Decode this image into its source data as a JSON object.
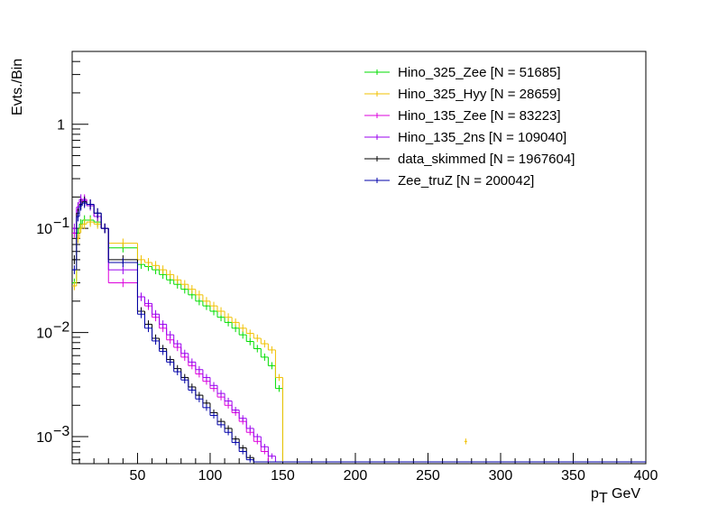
{
  "chart_data": {
    "type": "line",
    "style": "step-histogram",
    "ylabel": "Evts./Bin",
    "xlabel_main": "p",
    "xlabel_sub": "T",
    "xlabel_unit": "GeV",
    "xlim": [
      5,
      400
    ],
    "ylim": [
      0.00055,
      5
    ],
    "yscale": "log",
    "x_ticks": [
      50,
      100,
      150,
      200,
      250,
      300,
      350,
      400
    ],
    "x_tick_labels": [
      "50",
      "100",
      "150",
      "200",
      "250",
      "300",
      "350",
      "400"
    ],
    "y_ticks": [
      0.001,
      0.01,
      0.1,
      1
    ],
    "y_tick_labels": [
      {
        "base": "10",
        "exp": "−3"
      },
      {
        "base": "10",
        "exp": "−2"
      },
      {
        "base": "10",
        "exp": "−1"
      },
      {
        "base": "1",
        "exp": ""
      }
    ],
    "legend_position": "top-right",
    "series": [
      {
        "name": "Hino_325_Zee [N = 51685]",
        "color": "#00dd00",
        "bins": [
          [
            5,
            8,
            0.03
          ],
          [
            8,
            10,
            0.09
          ],
          [
            10,
            12,
            0.11
          ],
          [
            12,
            15,
            0.12
          ],
          [
            15,
            20,
            0.12
          ],
          [
            20,
            25,
            0.115
          ],
          [
            25,
            30,
            0.1
          ],
          [
            30,
            50,
            0.065
          ],
          [
            50,
            55,
            0.045
          ],
          [
            55,
            60,
            0.043
          ],
          [
            60,
            65,
            0.04
          ],
          [
            65,
            70,
            0.036
          ],
          [
            70,
            75,
            0.032
          ],
          [
            75,
            80,
            0.029
          ],
          [
            80,
            85,
            0.026
          ],
          [
            85,
            90,
            0.023
          ],
          [
            90,
            95,
            0.02
          ],
          [
            95,
            100,
            0.018
          ],
          [
            100,
            105,
            0.016
          ],
          [
            105,
            110,
            0.014
          ],
          [
            110,
            115,
            0.0125
          ],
          [
            115,
            120,
            0.011
          ],
          [
            120,
            125,
            0.0095
          ],
          [
            125,
            130,
            0.0082
          ],
          [
            130,
            135,
            0.007
          ],
          [
            135,
            140,
            0.0058
          ],
          [
            140,
            145,
            0.0048
          ],
          [
            145,
            150,
            0.0029
          ]
        ]
      },
      {
        "name": "Hino_325_Hyy [N = 28659]",
        "color": "#f0c000",
        "bins": [
          [
            5,
            8,
            0.028
          ],
          [
            8,
            10,
            0.08
          ],
          [
            10,
            12,
            0.1
          ],
          [
            12,
            15,
            0.11
          ],
          [
            15,
            20,
            0.115
          ],
          [
            20,
            25,
            0.11
          ],
          [
            25,
            30,
            0.1
          ],
          [
            30,
            50,
            0.072
          ],
          [
            50,
            55,
            0.05
          ],
          [
            55,
            60,
            0.047
          ],
          [
            60,
            65,
            0.044
          ],
          [
            65,
            70,
            0.04
          ],
          [
            70,
            75,
            0.036
          ],
          [
            75,
            80,
            0.032
          ],
          [
            80,
            85,
            0.029
          ],
          [
            85,
            90,
            0.026
          ],
          [
            90,
            95,
            0.023
          ],
          [
            95,
            100,
            0.02
          ],
          [
            100,
            105,
            0.018
          ],
          [
            105,
            110,
            0.016
          ],
          [
            110,
            115,
            0.014
          ],
          [
            115,
            120,
            0.0125
          ],
          [
            120,
            125,
            0.011
          ],
          [
            125,
            130,
            0.0098
          ],
          [
            130,
            135,
            0.0088
          ],
          [
            135,
            140,
            0.0078
          ],
          [
            140,
            145,
            0.0068
          ],
          [
            145,
            150,
            0.0037
          ],
          [
            275,
            277,
            0.0009
          ]
        ]
      },
      {
        "name": "Hino_135_Zee [N = 83223]",
        "color": "#dd00dd",
        "bins": [
          [
            5,
            8,
            0.09
          ],
          [
            8,
            10,
            0.15
          ],
          [
            10,
            12,
            0.18
          ],
          [
            12,
            15,
            0.19
          ],
          [
            15,
            20,
            0.17
          ],
          [
            20,
            25,
            0.13
          ],
          [
            25,
            30,
            0.1
          ],
          [
            30,
            50,
            0.03
          ],
          [
            50,
            55,
            0.022
          ],
          [
            55,
            60,
            0.018
          ],
          [
            60,
            65,
            0.014
          ],
          [
            65,
            70,
            0.011
          ],
          [
            70,
            75,
            0.0085
          ],
          [
            75,
            80,
            0.0072
          ],
          [
            80,
            85,
            0.0058
          ],
          [
            85,
            90,
            0.0048
          ],
          [
            90,
            95,
            0.004
          ],
          [
            95,
            100,
            0.0034
          ],
          [
            100,
            105,
            0.0029
          ],
          [
            105,
            110,
            0.0024
          ],
          [
            110,
            115,
            0.002
          ],
          [
            115,
            120,
            0.0017
          ],
          [
            120,
            125,
            0.0014
          ],
          [
            125,
            130,
            0.0011
          ],
          [
            130,
            135,
            0.0009
          ],
          [
            135,
            140,
            0.00072
          ]
        ]
      },
      {
        "name": "Hino_135_2ns [N = 109040]",
        "color": "#9900ee",
        "bins": [
          [
            5,
            8,
            0.1
          ],
          [
            8,
            10,
            0.16
          ],
          [
            10,
            12,
            0.19
          ],
          [
            12,
            15,
            0.185
          ],
          [
            15,
            20,
            0.165
          ],
          [
            20,
            25,
            0.13
          ],
          [
            25,
            30,
            0.1
          ],
          [
            30,
            50,
            0.04
          ],
          [
            50,
            55,
            0.022
          ],
          [
            55,
            60,
            0.019
          ],
          [
            60,
            65,
            0.015
          ],
          [
            65,
            70,
            0.012
          ],
          [
            70,
            75,
            0.0095
          ],
          [
            75,
            80,
            0.0078
          ],
          [
            80,
            85,
            0.0063
          ],
          [
            85,
            90,
            0.0052
          ],
          [
            90,
            95,
            0.0044
          ],
          [
            95,
            100,
            0.0037
          ],
          [
            100,
            105,
            0.0031
          ],
          [
            105,
            110,
            0.0026
          ],
          [
            110,
            115,
            0.0022
          ],
          [
            115,
            120,
            0.0018
          ],
          [
            120,
            125,
            0.0015
          ],
          [
            125,
            130,
            0.0012
          ],
          [
            130,
            135,
            0.001
          ],
          [
            135,
            140,
            0.0008
          ],
          [
            140,
            145,
            0.00065
          ]
        ]
      },
      {
        "name": "data_skimmed [N = 1967604]",
        "color": "#000000",
        "bins": [
          [
            5,
            8,
            0.05
          ],
          [
            8,
            10,
            0.14
          ],
          [
            10,
            12,
            0.17
          ],
          [
            12,
            15,
            0.18
          ],
          [
            15,
            20,
            0.17
          ],
          [
            20,
            25,
            0.14
          ],
          [
            25,
            30,
            0.1
          ],
          [
            30,
            50,
            0.05
          ],
          [
            50,
            55,
            0.016
          ],
          [
            55,
            60,
            0.012
          ],
          [
            60,
            65,
            0.0088
          ],
          [
            65,
            70,
            0.007
          ],
          [
            70,
            75,
            0.0055
          ],
          [
            75,
            80,
            0.0045
          ],
          [
            80,
            85,
            0.0037
          ],
          [
            85,
            90,
            0.003
          ],
          [
            90,
            95,
            0.0025
          ],
          [
            95,
            100,
            0.0021
          ],
          [
            100,
            105,
            0.0017
          ],
          [
            105,
            110,
            0.0014
          ],
          [
            110,
            115,
            0.0012
          ],
          [
            115,
            120,
            0.00095
          ],
          [
            120,
            125,
            0.00078
          ],
          [
            125,
            130,
            0.00063
          ]
        ]
      },
      {
        "name": "Zee_truZ [N = 200042]",
        "color": "#0000aa",
        "bins": [
          [
            5,
            8,
            0.04
          ],
          [
            8,
            10,
            0.13
          ],
          [
            10,
            12,
            0.165
          ],
          [
            12,
            15,
            0.175
          ],
          [
            15,
            20,
            0.17
          ],
          [
            20,
            25,
            0.14
          ],
          [
            25,
            30,
            0.1
          ],
          [
            30,
            50,
            0.047
          ],
          [
            50,
            55,
            0.015
          ],
          [
            55,
            60,
            0.011
          ],
          [
            60,
            65,
            0.0083
          ],
          [
            65,
            70,
            0.0066
          ],
          [
            70,
            75,
            0.0052
          ],
          [
            75,
            80,
            0.0042
          ],
          [
            80,
            85,
            0.0035
          ],
          [
            85,
            90,
            0.0028
          ],
          [
            90,
            95,
            0.0023
          ],
          [
            95,
            100,
            0.0019
          ],
          [
            100,
            105,
            0.0016
          ],
          [
            105,
            110,
            0.0013
          ],
          [
            110,
            115,
            0.0011
          ],
          [
            115,
            120,
            0.00088
          ],
          [
            120,
            125,
            0.00072
          ],
          [
            125,
            130,
            0.0006
          ]
        ]
      }
    ]
  }
}
